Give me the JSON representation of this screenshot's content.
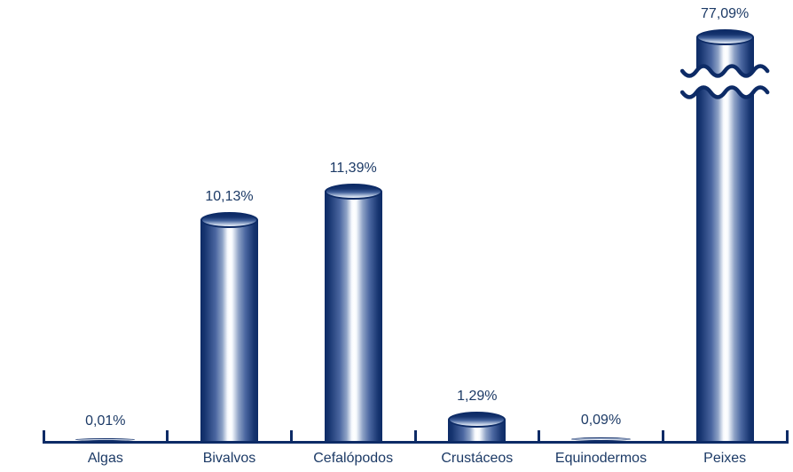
{
  "page": {
    "background": "#ffffff"
  },
  "chart_data": {
    "type": "bar",
    "style": "3d-cylinder",
    "title": "",
    "xlabel": "",
    "ylabel": "",
    "unit": "%",
    "categories": [
      "Algas",
      "Bivalvos",
      "Cefalópodos",
      "Crustáceos",
      "Equinodermos",
      "Peixes"
    ],
    "values": [
      0.01,
      10.13,
      11.39,
      1.29,
      0.09,
      77.09
    ],
    "value_labels": [
      "0,01%",
      "10,13%",
      "11,39%",
      "1,29%",
      "0,09%",
      "77,09%"
    ],
    "axis_break": {
      "categories": [
        "Peixes"
      ],
      "style": "double-wavy-line"
    },
    "grid": false,
    "legend_position": "none",
    "colors": {
      "bar_dark": "#0d2b66",
      "bar_highlight": "#ffffff",
      "axis": "#0d2b66",
      "label_text": "#1c3a66",
      "background": "#ffffff"
    }
  }
}
